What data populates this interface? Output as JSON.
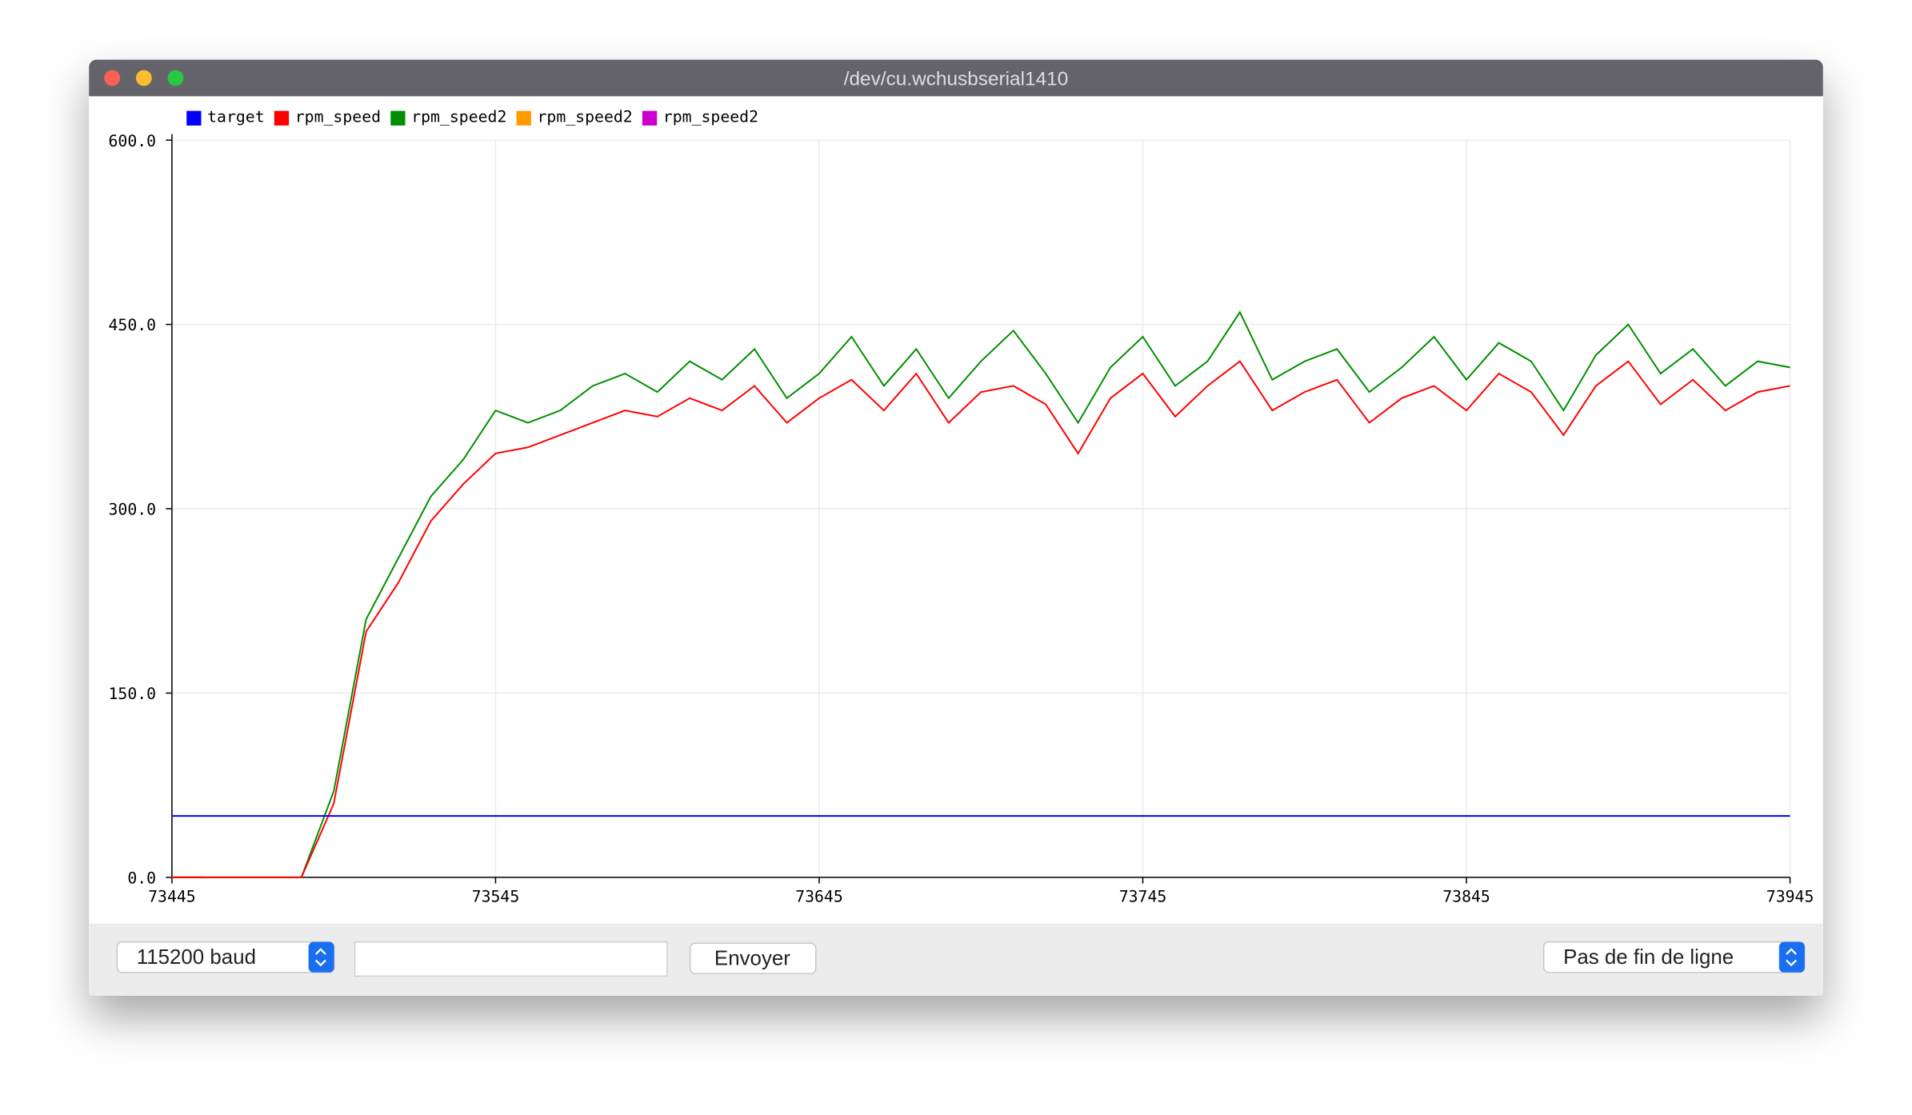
{
  "window": {
    "title": "/dev/cu.wchusbserial1410",
    "baud": "115200 baud",
    "send_button": "Envoyer",
    "line_ending": "Pas de fin de ligne"
  },
  "chart_data": {
    "type": "line",
    "x": [
      73445,
      73455,
      73465,
      73475,
      73485,
      73495,
      73505,
      73515,
      73525,
      73535,
      73545,
      73555,
      73565,
      73575,
      73585,
      73595,
      73605,
      73615,
      73625,
      73635,
      73645,
      73655,
      73665,
      73675,
      73685,
      73695,
      73705,
      73715,
      73725,
      73735,
      73745,
      73755,
      73765,
      73775,
      73785,
      73795,
      73805,
      73815,
      73825,
      73835,
      73845,
      73855,
      73865,
      73875,
      73885,
      73895,
      73905,
      73915,
      73925,
      73935,
      73945
    ],
    "series": [
      {
        "name": "target",
        "color": "#0000ff",
        "values": [
          50,
          50,
          50,
          50,
          50,
          50,
          50,
          50,
          50,
          50,
          50,
          50,
          50,
          50,
          50,
          50,
          50,
          50,
          50,
          50,
          50,
          50,
          50,
          50,
          50,
          50,
          50,
          50,
          50,
          50,
          50,
          50,
          50,
          50,
          50,
          50,
          50,
          50,
          50,
          50,
          50,
          50,
          50,
          50,
          50,
          50,
          50,
          50,
          50,
          50,
          50
        ]
      },
      {
        "name": "rpm_speed",
        "color": "#ff0000",
        "values": [
          0,
          0,
          0,
          0,
          0,
          60,
          200,
          240,
          290,
          320,
          345,
          350,
          360,
          370,
          380,
          375,
          390,
          380,
          400,
          370,
          390,
          405,
          380,
          410,
          370,
          395,
          400,
          385,
          345,
          390,
          410,
          375,
          400,
          420,
          380,
          395,
          405,
          370,
          390,
          400,
          380,
          410,
          395,
          360,
          400,
          420,
          385,
          405,
          380,
          395,
          400
        ]
      },
      {
        "name": "rpm_speed2",
        "color": "#008f00",
        "values": [
          0,
          0,
          0,
          0,
          0,
          70,
          210,
          260,
          310,
          340,
          380,
          370,
          380,
          400,
          410,
          395,
          420,
          405,
          430,
          390,
          410,
          440,
          400,
          430,
          390,
          420,
          445,
          410,
          370,
          415,
          440,
          400,
          420,
          460,
          405,
          420,
          430,
          395,
          415,
          440,
          405,
          435,
          420,
          380,
          425,
          450,
          410,
          430,
          400,
          420,
          415
        ]
      },
      {
        "name": "rpm_speed2",
        "color": "#ff9900",
        "values": [
          0,
          0,
          null,
          null,
          null,
          null,
          null,
          null,
          null,
          null,
          null,
          null,
          null,
          null,
          null,
          null,
          null,
          null,
          null,
          null,
          null,
          null,
          null,
          null,
          null,
          null,
          null,
          null,
          null,
          null,
          null,
          null,
          null,
          null,
          null,
          null,
          null,
          null,
          null,
          null,
          null,
          null,
          null,
          null,
          null,
          null,
          null,
          null,
          null,
          null,
          null
        ]
      },
      {
        "name": "rpm_speed2",
        "color": "#cc00cc",
        "values": [
          0,
          0,
          null,
          null,
          null,
          null,
          null,
          null,
          null,
          null,
          null,
          null,
          null,
          null,
          null,
          null,
          null,
          null,
          null,
          null,
          null,
          null,
          null,
          null,
          null,
          null,
          null,
          null,
          null,
          null,
          null,
          null,
          null,
          null,
          null,
          null,
          null,
          null,
          null,
          null,
          null,
          null,
          null,
          null,
          null,
          null,
          null,
          null,
          null,
          null,
          null
        ]
      }
    ],
    "xlim": [
      73445,
      73945
    ],
    "xticks": [
      73445,
      73545,
      73645,
      73745,
      73845,
      73945
    ],
    "ylim": [
      0,
      600
    ],
    "yticks": [
      {
        "value": 0,
        "label": "0.0"
      },
      {
        "value": 150,
        "label": "150.0"
      },
      {
        "value": 300,
        "label": "300.0"
      },
      {
        "value": 450,
        "label": "450.0"
      },
      {
        "value": 600,
        "label": "600.0"
      }
    ],
    "grid": true
  }
}
